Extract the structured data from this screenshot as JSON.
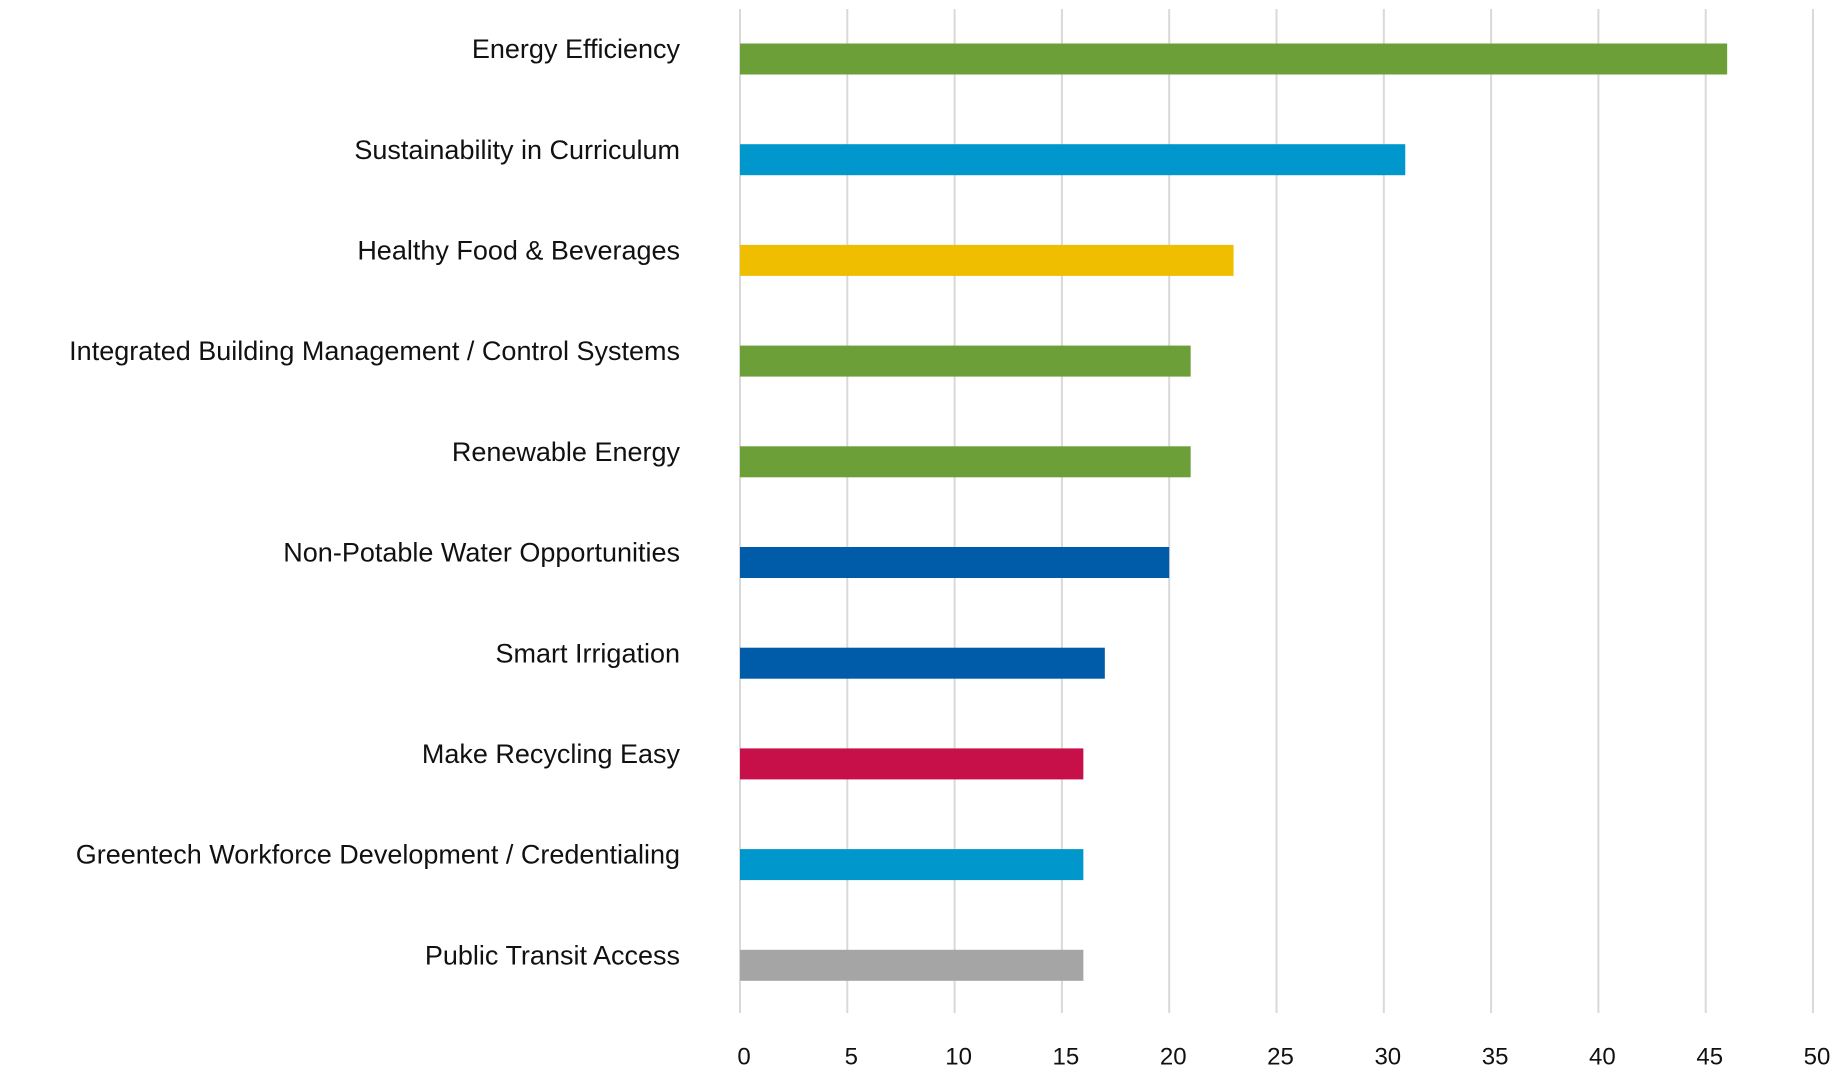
{
  "chart_data": {
    "type": "bar",
    "orientation": "horizontal",
    "categories": [
      "Energy Efficiency",
      "Sustainability in Curriculum",
      "Healthy Food & Beverages",
      "Integrated Building Management / Control Systems",
      "Renewable Energy",
      "Non-Potable Water Opportunities",
      "Smart Irrigation",
      "Make Recycling Easy",
      "Greentech Workforce Development / Credentialing",
      "Public Transit Access"
    ],
    "values": [
      46,
      31,
      23,
      21,
      21,
      20,
      17,
      16,
      16,
      16
    ],
    "colors": [
      "#6d9f38",
      "#0097cd",
      "#efbe00",
      "#6d9f38",
      "#6d9f38",
      "#005ba9",
      "#005ba9",
      "#c70f4a",
      "#0097cd",
      "#a5a5a5"
    ],
    "xlim": [
      0,
      50
    ],
    "xticks": [
      0,
      5,
      10,
      15,
      20,
      25,
      30,
      35,
      40,
      45,
      50
    ],
    "grid": true
  }
}
